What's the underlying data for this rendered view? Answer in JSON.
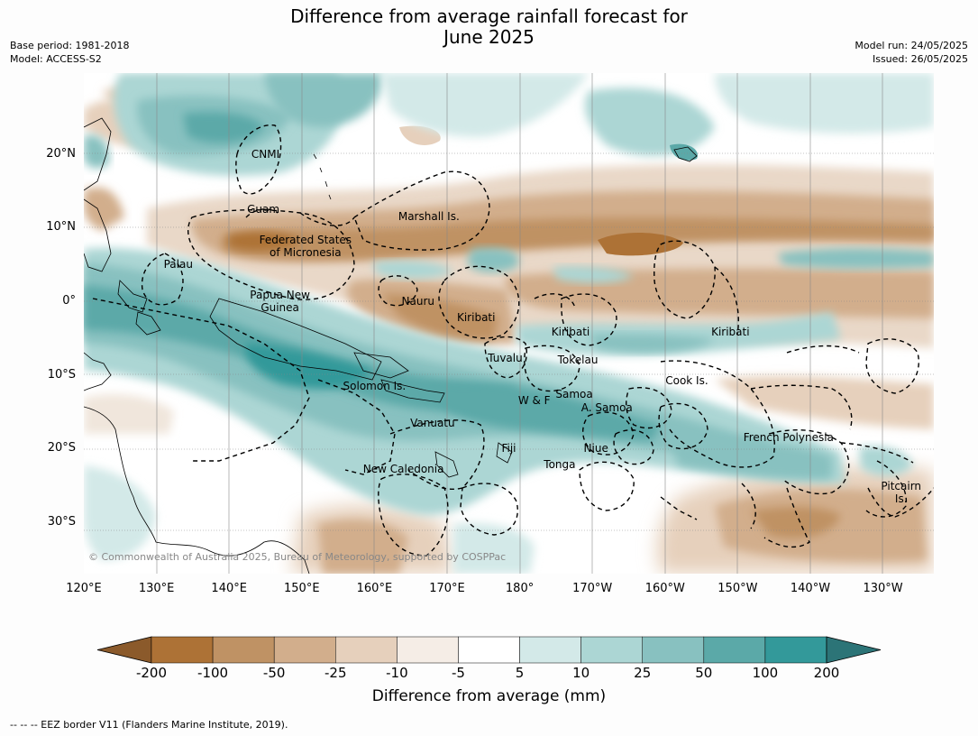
{
  "title_line1": "Difference from average rainfall forecast for",
  "title_line2": "June 2025",
  "base_period": "Base period: 1981-2018",
  "model": "Model: ACCESS-S2",
  "model_run": "Model run: 24/05/2025",
  "issued": "Issued: 26/05/2025",
  "copyright": "© Commonwealth of Australia 2025, Bureau of Meteorology, supported by COSPPac",
  "footnote": "--  --  -- EEZ border V11 (Flanders Marine Institute, 2019).",
  "map": {
    "lon_range": [
      120,
      237
    ],
    "lat_range": [
      -37,
      31
    ],
    "lat_ticks": [
      {
        "value": 20,
        "label": "20°N"
      },
      {
        "value": 10,
        "label": "10°N"
      },
      {
        "value": 0,
        "label": "0°"
      },
      {
        "value": -10,
        "label": "10°S"
      },
      {
        "value": -20,
        "label": "20°S"
      },
      {
        "value": -30,
        "label": "30°S"
      }
    ],
    "lon_ticks": [
      {
        "value": 120,
        "label": "120°E"
      },
      {
        "value": 130,
        "label": "130°E"
      },
      {
        "value": 140,
        "label": "140°E"
      },
      {
        "value": 150,
        "label": "150°E"
      },
      {
        "value": 160,
        "label": "160°E"
      },
      {
        "value": 170,
        "label": "170°E"
      },
      {
        "value": 180,
        "label": "180°"
      },
      {
        "value": 190,
        "label": "170°W"
      },
      {
        "value": 200,
        "label": "160°W"
      },
      {
        "value": 210,
        "label": "150°W"
      },
      {
        "value": 220,
        "label": "140°W"
      },
      {
        "value": 230,
        "label": "130°W"
      }
    ],
    "regions": [
      {
        "name": "CNMI",
        "lon": 145.0,
        "lat": 20.0
      },
      {
        "name": "Guam",
        "lon": 144.7,
        "lat": 12.5
      },
      {
        "name": "Marshall Is.",
        "lon": 167.5,
        "lat": 11.5
      },
      {
        "name": "Federated States\nof Micronesia",
        "lon": 150.5,
        "lat": 7.5
      },
      {
        "name": "Palau",
        "lon": 133.0,
        "lat": 5.0
      },
      {
        "name": "Papua New\nGuinea",
        "lon": 147.0,
        "lat": 0.0
      },
      {
        "name": "Nauru",
        "lon": 166.0,
        "lat": 0.0
      },
      {
        "name": "Kiribati",
        "lon": 174.0,
        "lat": -2.2
      },
      {
        "name": "Kiribati",
        "lon": 187.0,
        "lat": -4.2
      },
      {
        "name": "Kiribati",
        "lon": 209.0,
        "lat": -4.2
      },
      {
        "name": "Tuvalu",
        "lon": 178.0,
        "lat": -7.7
      },
      {
        "name": "Tokelau",
        "lon": 188.0,
        "lat": -8.0
      },
      {
        "name": "Cook Is.",
        "lon": 203.0,
        "lat": -10.8
      },
      {
        "name": "Solomon Is.",
        "lon": 160.0,
        "lat": -11.5
      },
      {
        "name": "Samoa",
        "lon": 187.5,
        "lat": -12.6
      },
      {
        "name": "W & F",
        "lon": 182.0,
        "lat": -13.5
      },
      {
        "name": "A. Samoa",
        "lon": 192.0,
        "lat": -14.5
      },
      {
        "name": "Vanuatu",
        "lon": 168.0,
        "lat": -16.5
      },
      {
        "name": "French Polynesia",
        "lon": 217.0,
        "lat": -18.5
      },
      {
        "name": "Fiji",
        "lon": 178.5,
        "lat": -20.0
      },
      {
        "name": "Niue",
        "lon": 190.5,
        "lat": -20.0
      },
      {
        "name": "Tonga",
        "lon": 185.5,
        "lat": -22.2
      },
      {
        "name": "New Caledonia",
        "lon": 164.0,
        "lat": -22.8
      },
      {
        "name": "Pitcairn\nIs.",
        "lon": 232.5,
        "lat": -26.0
      }
    ]
  },
  "legend": {
    "title": "Difference from average (mm)",
    "ticks": [
      "-200",
      "-100",
      "-50",
      "-25",
      "-10",
      "-5",
      "5",
      "10",
      "25",
      "50",
      "100",
      "200"
    ],
    "colors": [
      "#8b5a2b",
      "#ad7236",
      "#bf9264",
      "#d2ae8c",
      "#e6d0bc",
      "#f5ede6",
      "#ffffff",
      "#d3e9e8",
      "#acd6d4",
      "#88c1c0",
      "#5ba9a8",
      "#33999a",
      "#2c7477"
    ]
  }
}
